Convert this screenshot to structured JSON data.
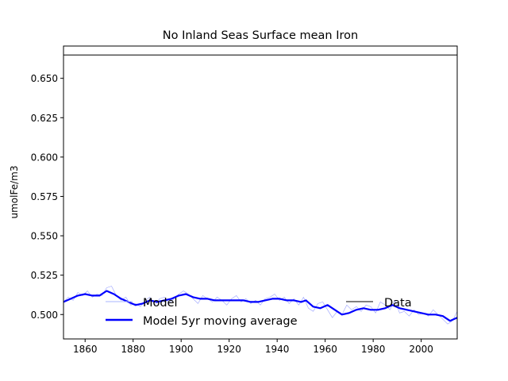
{
  "chart_data": {
    "type": "line",
    "title": "No Inland Seas Surface mean Iron",
    "xlabel": "",
    "ylabel": "umolFe/m3",
    "xlim": [
      1851,
      2015
    ],
    "ylim": [
      0.4845,
      0.6705
    ],
    "xticks": [
      1860,
      1880,
      1900,
      1920,
      1940,
      1960,
      1980,
      2000
    ],
    "yticks": [
      0.5,
      0.525,
      0.55,
      0.575,
      0.6,
      0.625,
      0.65
    ],
    "ytick_labels": [
      "0.500",
      "0.525",
      "0.550",
      "0.575",
      "0.600",
      "0.625",
      "0.650"
    ],
    "grid": false,
    "legend": [
      {
        "label": "Model",
        "color": "#aab4ff",
        "style": "thin"
      },
      {
        "label": "Model 5yr moving average",
        "color": "#0000ff",
        "style": "thick"
      },
      {
        "label": "Data",
        "color": "#000000",
        "style": "thin"
      }
    ],
    "series": [
      {
        "name": "Model",
        "color": "#8c96ff",
        "x": [
          1851,
          1853,
          1855,
          1857,
          1859,
          1861,
          1863,
          1865,
          1867,
          1869,
          1871,
          1873,
          1875,
          1877,
          1879,
          1881,
          1883,
          1885,
          1887,
          1889,
          1891,
          1893,
          1895,
          1897,
          1899,
          1901,
          1903,
          1905,
          1907,
          1909,
          1911,
          1913,
          1915,
          1917,
          1919,
          1921,
          1923,
          1925,
          1927,
          1929,
          1931,
          1933,
          1935,
          1937,
          1939,
          1941,
          1943,
          1945,
          1947,
          1949,
          1951,
          1953,
          1955,
          1957,
          1959,
          1961,
          1963,
          1965,
          1967,
          1969,
          1971,
          1973,
          1975,
          1977,
          1979,
          1981,
          1983,
          1985,
          1987,
          1989,
          1991,
          1993,
          1995,
          1997,
          1999,
          2001,
          2003,
          2005,
          2007,
          2009,
          2011,
          2013,
          2015
        ],
        "values": [
          0.508,
          0.511,
          0.509,
          0.514,
          0.512,
          0.515,
          0.511,
          0.513,
          0.512,
          0.517,
          0.518,
          0.512,
          0.509,
          0.511,
          0.506,
          0.507,
          0.505,
          0.509,
          0.511,
          0.506,
          0.51,
          0.511,
          0.507,
          0.51,
          0.513,
          0.515,
          0.513,
          0.51,
          0.507,
          0.512,
          0.51,
          0.508,
          0.511,
          0.509,
          0.506,
          0.51,
          0.512,
          0.508,
          0.51,
          0.507,
          0.509,
          0.506,
          0.51,
          0.511,
          0.513,
          0.509,
          0.511,
          0.507,
          0.51,
          0.506,
          0.511,
          0.504,
          0.502,
          0.507,
          0.508,
          0.503,
          0.498,
          0.502,
          0.5,
          0.506,
          0.503,
          0.505,
          0.502,
          0.506,
          0.505,
          0.501,
          0.508,
          0.506,
          0.503,
          0.509,
          0.501,
          0.502,
          0.499,
          0.503,
          0.5,
          0.501,
          0.499,
          0.503,
          0.5,
          0.497,
          0.494,
          0.496,
          0.502
        ]
      },
      {
        "name": "Model 5yr moving average",
        "color": "#0000ff",
        "x": [
          1851,
          1854,
          1857,
          1860,
          1863,
          1866,
          1869,
          1872,
          1875,
          1878,
          1881,
          1884,
          1887,
          1890,
          1893,
          1896,
          1899,
          1902,
          1905,
          1908,
          1911,
          1914,
          1917,
          1920,
          1923,
          1926,
          1929,
          1932,
          1935,
          1938,
          1941,
          1944,
          1947,
          1950,
          1952,
          1955,
          1958,
          1961,
          1964,
          1967,
          1970,
          1973,
          1976,
          1979,
          1982,
          1985,
          1988,
          1991,
          1994,
          1997,
          2000,
          2003,
          2006,
          2009,
          2012,
          2015
        ],
        "values": [
          0.508,
          0.51,
          0.512,
          0.513,
          0.512,
          0.512,
          0.515,
          0.513,
          0.51,
          0.508,
          0.506,
          0.507,
          0.509,
          0.508,
          0.509,
          0.51,
          0.512,
          0.513,
          0.511,
          0.51,
          0.51,
          0.509,
          0.509,
          0.509,
          0.509,
          0.509,
          0.508,
          0.508,
          0.509,
          0.51,
          0.51,
          0.509,
          0.509,
          0.508,
          0.509,
          0.505,
          0.504,
          0.506,
          0.503,
          0.5,
          0.501,
          0.503,
          0.504,
          0.503,
          0.503,
          0.504,
          0.506,
          0.504,
          0.503,
          0.502,
          0.501,
          0.5,
          0.5,
          0.499,
          0.496,
          0.498
        ]
      },
      {
        "name": "Data",
        "color": "#000000",
        "x": [
          1851,
          2015
        ],
        "values": [
          0.6648,
          0.6648
        ]
      }
    ]
  }
}
